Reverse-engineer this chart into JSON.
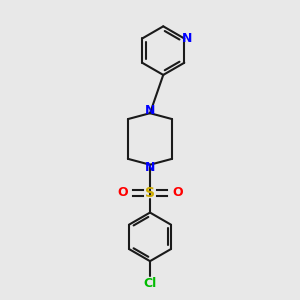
{
  "bg_color": "#e8e8e8",
  "bond_color": "#1a1a1a",
  "N_color": "#0000ff",
  "S_color": "#ccaa00",
  "O_color": "#ff0000",
  "Cl_color": "#00bb00",
  "line_width": 1.5,
  "figsize": [
    3.0,
    3.0
  ],
  "dpi": 100,
  "xlim": [
    -1.2,
    1.2
  ],
  "ylim": [
    -2.0,
    2.0
  ]
}
